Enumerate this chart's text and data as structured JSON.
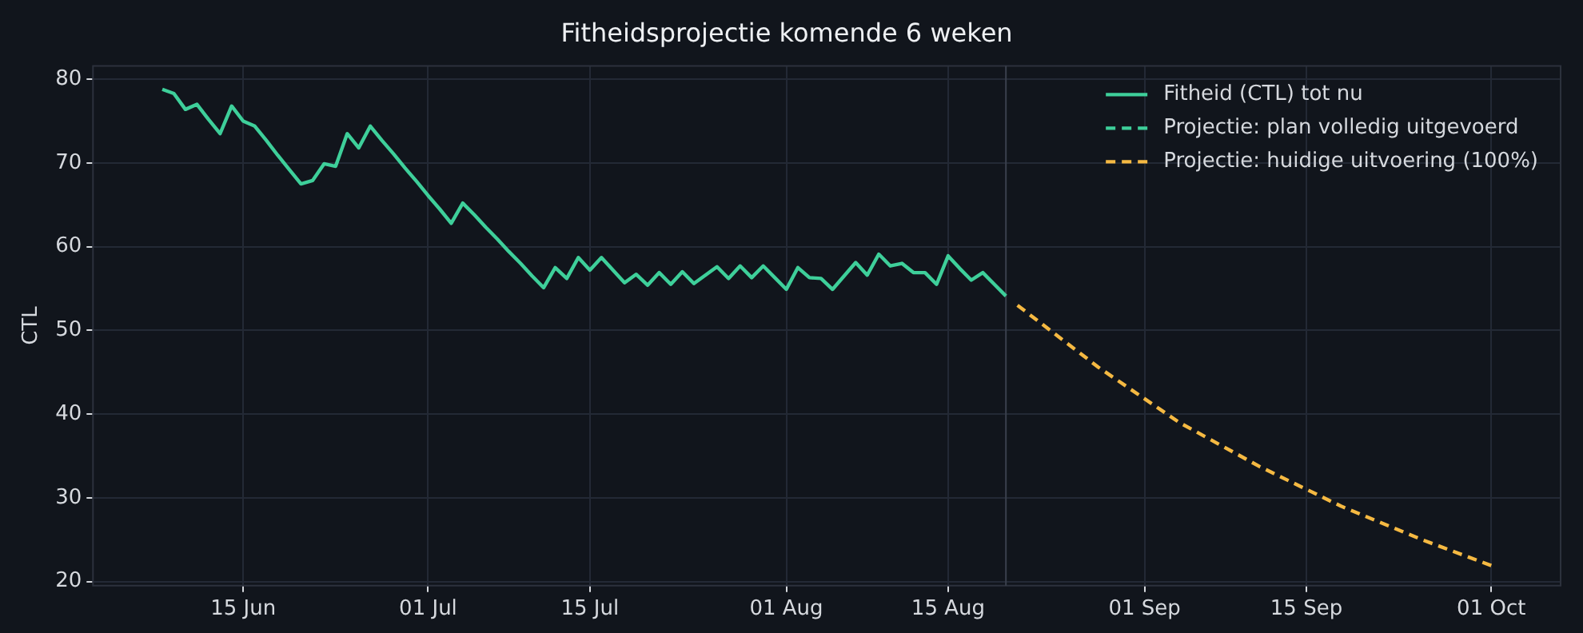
{
  "chart_data": {
    "type": "line",
    "title": "Fitheidsprojectie komende 6 weken",
    "ylabel": "CTL",
    "xlim": [
      "--06-02",
      "--10-07"
    ],
    "xticks": [
      {
        "value": "--06-15",
        "label": "15 Jun"
      },
      {
        "value": "--07-01",
        "label": "01 Jul"
      },
      {
        "value": "--07-15",
        "label": "15 Jul"
      },
      {
        "value": "--08-01",
        "label": "01 Aug"
      },
      {
        "value": "--08-15",
        "label": "15 Aug"
      },
      {
        "value": "--09-01",
        "label": "01 Sep"
      },
      {
        "value": "--09-15",
        "label": "15 Sep"
      },
      {
        "value": "--10-01",
        "label": "01 Oct"
      }
    ],
    "ylim": [
      19.5,
      81.6
    ],
    "yticks": [
      20,
      30,
      40,
      50,
      60,
      70,
      80
    ],
    "grid": true,
    "legend": "top right",
    "ref_lines": [
      {
        "axis": "x",
        "value": "--08-20",
        "color": "#3a404c"
      }
    ],
    "series": [
      {
        "name": "Fitheid (CTL) tot nu",
        "color": "#3ecf9a",
        "line_style": "solid",
        "x": [
          "--06-08",
          "--06-09",
          "--06-10",
          "--06-11",
          "--06-12",
          "--06-13",
          "--06-14",
          "--06-15",
          "--06-16",
          "--06-17",
          "--06-18",
          "--06-19",
          "--06-20",
          "--06-21",
          "--06-22",
          "--06-23",
          "--06-24",
          "--06-25",
          "--06-26",
          "--06-27",
          "--06-28",
          "--06-29",
          "--06-30",
          "--07-01",
          "--07-02",
          "--07-03",
          "--07-04",
          "--07-05",
          "--07-06",
          "--07-07",
          "--07-08",
          "--07-09",
          "--07-10",
          "--07-11",
          "--07-12",
          "--07-13",
          "--07-14",
          "--07-15",
          "--07-16",
          "--07-17",
          "--07-18",
          "--07-19",
          "--07-20",
          "--07-21",
          "--07-22",
          "--07-23",
          "--07-24",
          "--07-25",
          "--07-26",
          "--07-27",
          "--07-28",
          "--07-29",
          "--07-30",
          "--07-31",
          "--08-01",
          "--08-02",
          "--08-03",
          "--08-04",
          "--08-05",
          "--08-06",
          "--08-07",
          "--08-08",
          "--08-09",
          "--08-10",
          "--08-11",
          "--08-12",
          "--08-13",
          "--08-14",
          "--08-15",
          "--08-16",
          "--08-17",
          "--08-18",
          "--08-19",
          "--08-20"
        ],
        "values": [
          78.8,
          78.3,
          76.4,
          77.0,
          75.2,
          73.5,
          76.8,
          75.0,
          74.4,
          72.7,
          70.9,
          69.2,
          67.5,
          67.9,
          69.9,
          69.6,
          73.5,
          71.8,
          74.4,
          72.7,
          71.1,
          69.4,
          67.8,
          66.1,
          64.5,
          62.8,
          65.2,
          63.8,
          62.3,
          60.9,
          59.4,
          58.0,
          56.5,
          55.1,
          57.5,
          56.2,
          58.7,
          57.2,
          58.7,
          57.2,
          55.7,
          56.7,
          55.4,
          56.9,
          55.5,
          57.0,
          55.6,
          56.6,
          57.6,
          56.2,
          57.7,
          56.3,
          57.7,
          56.3,
          54.9,
          57.5,
          56.3,
          56.2,
          54.9,
          56.5,
          58.1,
          56.6,
          59.1,
          57.7,
          58.0,
          56.9,
          56.9,
          55.5,
          58.9,
          57.4,
          56.0,
          56.9,
          55.5,
          54.1
        ]
      },
      {
        "name": "Projectie: plan volledig uitgevoerd",
        "color": "#3ecf9a",
        "line_style": "dashed"
      },
      {
        "name": "Projectie: huidige uitvoering (100%)",
        "color": "#f5b942",
        "line_style": "dashed",
        "x": [
          "--08-21",
          "--08-28",
          "--09-04",
          "--09-11",
          "--09-18",
          "--09-25",
          "--10-01"
        ],
        "values": [
          53.0,
          45.6,
          39.0,
          33.7,
          29.0,
          25.0,
          21.9
        ]
      }
    ]
  }
}
